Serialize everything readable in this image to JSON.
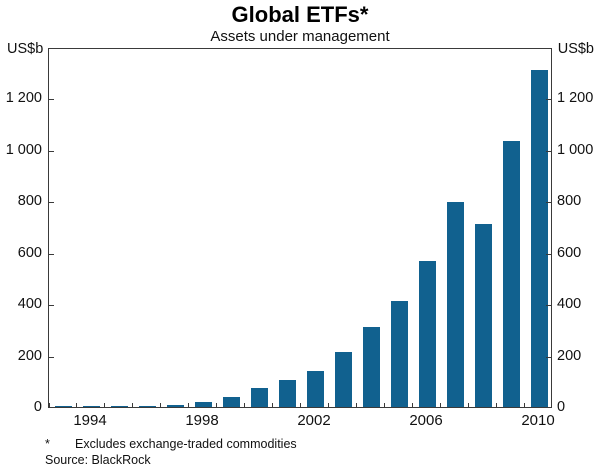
{
  "chart_data": {
    "type": "bar",
    "title": "Global ETFs*",
    "subtitle": "Assets under management",
    "unit_left": "US$b",
    "unit_right": "US$b",
    "categories": [
      1993,
      1994,
      1995,
      1996,
      1997,
      1998,
      1999,
      2000,
      2001,
      2002,
      2003,
      2004,
      2005,
      2006,
      2007,
      2008,
      2009,
      2010
    ],
    "values": [
      1,
      1.1,
      2.3,
      5.3,
      8.2,
      17.6,
      39.6,
      74.3,
      104.8,
      141.6,
      212,
      310,
      412,
      566,
      797,
      711,
      1036,
      1311
    ],
    "ylim": [
      0,
      1400
    ],
    "ytick_step": 200,
    "ytick_values": [
      0,
      200,
      400,
      600,
      800,
      1000,
      1200
    ],
    "ytick_labels": [
      "0",
      "200",
      "400",
      "600",
      "800",
      "1 000",
      "1 200"
    ],
    "xtick_years": [
      1994,
      1998,
      2002,
      2006,
      2010
    ],
    "xtick_labels": [
      "1994",
      "1998",
      "2002",
      "2006",
      "2010"
    ],
    "grid": false,
    "legend": "none",
    "bar_color": "#11618f",
    "footnote_marker": "*",
    "footnote_text": "Excludes exchange-traded commodities",
    "source": "Source: BlackRock"
  }
}
